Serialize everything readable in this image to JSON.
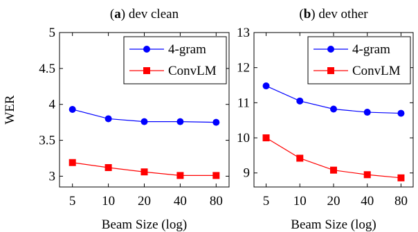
{
  "chart_data": [
    {
      "type": "line",
      "panel_letter": "a",
      "title": "dev clean",
      "xlabel": "Beam Size (log)",
      "ylabel": "WER",
      "x": [
        5,
        10,
        20,
        40,
        80
      ],
      "x_scale": "log",
      "ylim": [
        2.85,
        5.0
      ],
      "yticks": [
        3,
        3.5,
        4,
        4.5,
        5
      ],
      "ytick_labels": [
        "3",
        "3.5",
        "4",
        "4.5",
        "5"
      ],
      "grid": false,
      "legend_position": "top-right",
      "series": [
        {
          "name": "4-gram",
          "values": [
            3.93,
            3.8,
            3.76,
            3.76,
            3.75
          ],
          "color": "#0000ff",
          "marker": "circle"
        },
        {
          "name": "ConvLM",
          "values": [
            3.19,
            3.12,
            3.06,
            3.01,
            3.01
          ],
          "color": "#ff0000",
          "marker": "square"
        }
      ]
    },
    {
      "type": "line",
      "panel_letter": "b",
      "title": "dev other",
      "xlabel": "Beam Size (log)",
      "ylabel": "",
      "x": [
        5,
        10,
        20,
        40,
        80
      ],
      "x_scale": "log",
      "ylim": [
        8.6,
        13.0
      ],
      "yticks": [
        9,
        10,
        11,
        12,
        13
      ],
      "ytick_labels": [
        "9",
        "10",
        "11",
        "12",
        "13"
      ],
      "grid": false,
      "legend_position": "top-right",
      "series": [
        {
          "name": "4-gram",
          "values": [
            11.48,
            11.05,
            10.82,
            10.73,
            10.7
          ],
          "color": "#0000ff",
          "marker": "circle"
        },
        {
          "name": "ConvLM",
          "values": [
            10.0,
            9.42,
            9.08,
            8.95,
            8.86
          ],
          "color": "#ff0000",
          "marker": "square"
        }
      ]
    }
  ]
}
